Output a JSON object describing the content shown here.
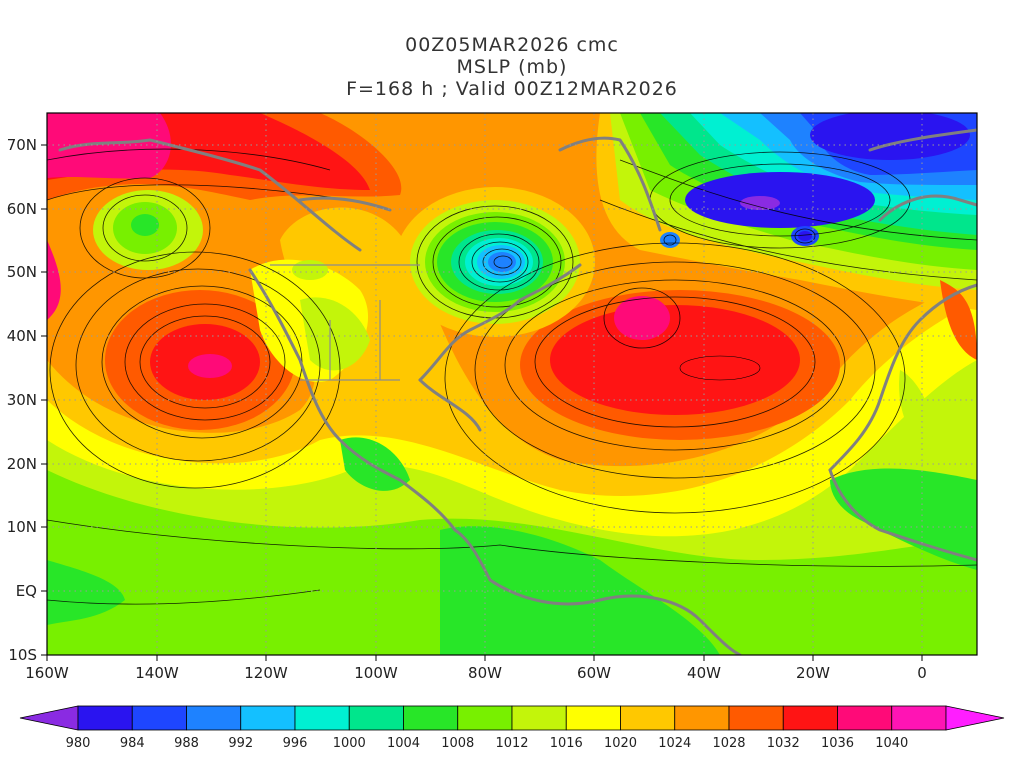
{
  "title": {
    "line1": "00Z05MAR2026 cmc",
    "line2": "MSLP (mb)",
    "line3": "F=168 h ; Valid 00Z12MAR2026"
  },
  "axes": {
    "lon_ticks": [
      "160W",
      "140W",
      "120W",
      "100W",
      "80W",
      "60W",
      "40W",
      "20W",
      "0"
    ],
    "lat_ticks": [
      "10S",
      "EQ",
      "10N",
      "20N",
      "30N",
      "40N",
      "50N",
      "60N",
      "70N"
    ],
    "lon_range": [
      -160,
      10
    ],
    "lat_range": [
      -10,
      75
    ]
  },
  "colorbar": {
    "levels": [
      "980",
      "984",
      "988",
      "992",
      "996",
      "1000",
      "1004",
      "1008",
      "1012",
      "1016",
      "1020",
      "1024",
      "1028",
      "1032",
      "1036",
      "1040"
    ],
    "colors": [
      "#8a2be2",
      "#2a14f0",
      "#1e46ff",
      "#1e82ff",
      "#14c0ff",
      "#00f0d2",
      "#00e68c",
      "#28e628",
      "#78f000",
      "#c3f50a",
      "#ffff00",
      "#ffc800",
      "#ff9600",
      "#ff5a00",
      "#ff1414",
      "#ff0a78",
      "#ff14b4",
      "#ff1eff"
    ]
  },
  "pressure_features": [
    {
      "kind": "high",
      "lon": -130,
      "lat": 35,
      "value": 1032
    },
    {
      "kind": "high",
      "lon": -52,
      "lat": 42,
      "value": 1036
    },
    {
      "kind": "high",
      "lon": -40,
      "lat": 34,
      "value": 1032
    },
    {
      "kind": "low",
      "lon": -76,
      "lat": 51,
      "value": 984
    },
    {
      "kind": "low",
      "lon": -22,
      "lat": 56,
      "value": 980
    },
    {
      "kind": "low",
      "lon": -48,
      "lat": 55,
      "value": 988
    },
    {
      "kind": "low",
      "lon": -142,
      "lat": 56,
      "value": 1004
    },
    {
      "kind": "high",
      "lon": -150,
      "lat": 70,
      "value": 1040
    }
  ]
}
